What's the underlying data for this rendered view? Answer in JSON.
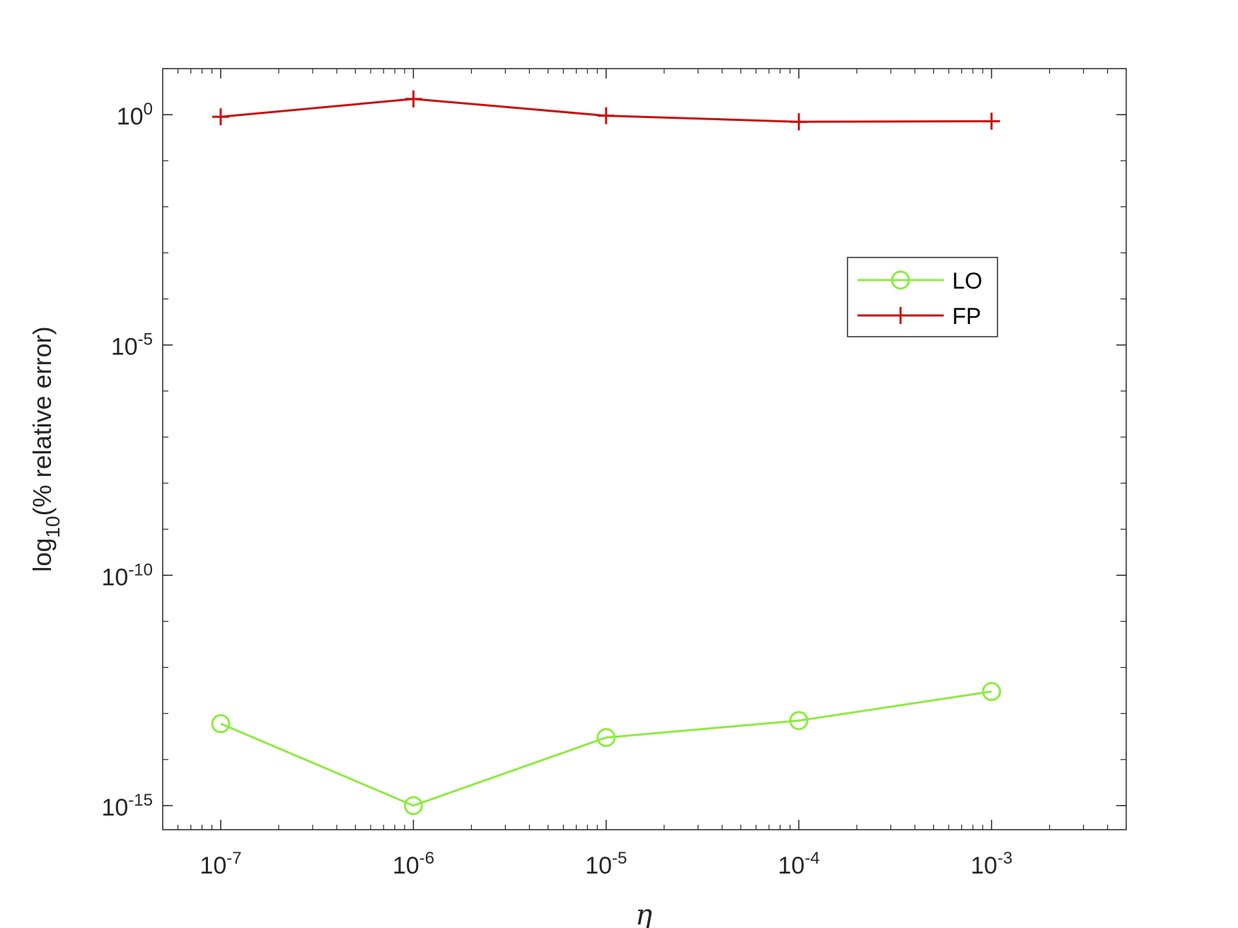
{
  "chart_data": {
    "type": "line",
    "x_scale": "log",
    "y_scale": "log",
    "xlabel": "η",
    "ylabel_prefix": "log",
    "ylabel_sub": "10",
    "ylabel_suffix": "(% relative error)",
    "xlim": [
      5e-08,
      0.005
    ],
    "ylim": [
      3e-16,
      10
    ],
    "x_ticks": [
      {
        "base": "10",
        "exp": "-7",
        "value": 1e-07
      },
      {
        "base": "10",
        "exp": "-6",
        "value": 1e-06
      },
      {
        "base": "10",
        "exp": "-5",
        "value": 1e-05
      },
      {
        "base": "10",
        "exp": "-4",
        "value": 0.0001
      },
      {
        "base": "10",
        "exp": "-3",
        "value": 0.001
      }
    ],
    "y_ticks": [
      {
        "base": "10",
        "exp": "0",
        "value": 1
      },
      {
        "base": "10",
        "exp": "-5",
        "value": 1e-05
      },
      {
        "base": "10",
        "exp": "-10",
        "value": 1e-10
      },
      {
        "base": "10",
        "exp": "-15",
        "value": 1e-15
      }
    ],
    "x": [
      1e-07,
      1e-06,
      1e-05,
      0.0001,
      0.001
    ],
    "series": [
      {
        "name": "LO",
        "color": "#8fea43",
        "marker": "circle",
        "values": [
          6e-14,
          1e-15,
          3e-14,
          7e-14,
          3e-13
        ]
      },
      {
        "name": "FP",
        "color": "#c81010",
        "marker": "plus",
        "values": [
          0.9,
          2.2,
          0.95,
          0.7,
          0.72
        ]
      }
    ],
    "legend_position": "right-upper-inside",
    "grid": false
  }
}
